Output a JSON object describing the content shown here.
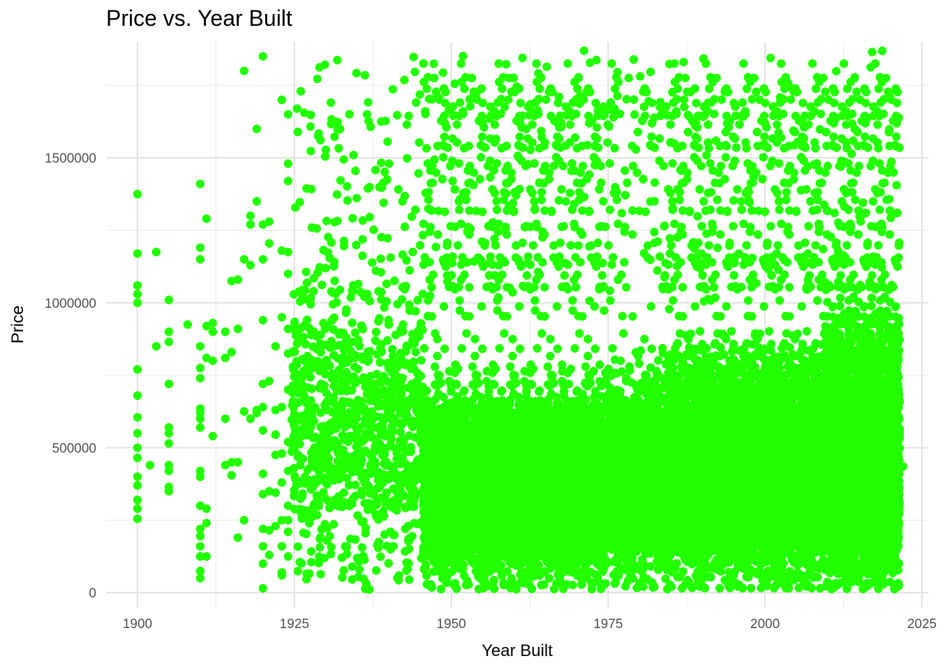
{
  "chart_data": {
    "type": "scatter",
    "title": "Price vs. Year Built",
    "xlabel": "Year Built",
    "ylabel": "Price",
    "xlim": [
      1895,
      2026
    ],
    "ylim": [
      -50000,
      1900000
    ],
    "x_ticks": [
      1900,
      1925,
      1950,
      1975,
      2000,
      2025
    ],
    "y_ticks": [
      0,
      500000,
      1000000,
      1500000
    ],
    "x_tick_labels": [
      "1900",
      "1925",
      "1950",
      "1975",
      "2000",
      "2025"
    ],
    "y_tick_labels": [
      "0",
      "500000",
      "1000000",
      "1500000"
    ],
    "grid": true,
    "point_color": "#22ff00",
    "series": [
      {
        "points": [
          [
            1900,
            1375000
          ],
          [
            1900,
            1170000
          ],
          [
            1900,
            1060000
          ],
          [
            1900,
            1030000
          ],
          [
            1900,
            1000000
          ],
          [
            1900,
            770000
          ],
          [
            1900,
            680000
          ],
          [
            1900,
            605000
          ],
          [
            1900,
            550000
          ],
          [
            1900,
            500000
          ],
          [
            1900,
            465000
          ],
          [
            1900,
            400000
          ],
          [
            1900,
            370000
          ],
          [
            1900,
            320000
          ],
          [
            1900,
            290000
          ],
          [
            1900,
            255000
          ],
          [
            1903,
            1175000
          ],
          [
            1902,
            440000
          ],
          [
            1903,
            850000
          ],
          [
            1905,
            1010000
          ],
          [
            1905,
            900000
          ],
          [
            1905,
            865000
          ],
          [
            1905,
            720000
          ],
          [
            1905,
            570000
          ],
          [
            1905,
            550000
          ],
          [
            1905,
            515000
          ],
          [
            1905,
            440000
          ],
          [
            1905,
            420000
          ],
          [
            1905,
            365000
          ],
          [
            1905,
            350000
          ],
          [
            1908,
            925000
          ],
          [
            1910,
            1410000
          ],
          [
            1910,
            1190000
          ],
          [
            1910,
            1150000
          ],
          [
            1910,
            850000
          ],
          [
            1910,
            775000
          ],
          [
            1910,
            740000
          ],
          [
            1910,
            635000
          ],
          [
            1910,
            620000
          ],
          [
            1910,
            600000
          ],
          [
            1910,
            570000
          ],
          [
            1910,
            420000
          ],
          [
            1910,
            400000
          ],
          [
            1910,
            300000
          ],
          [
            1910,
            220000
          ],
          [
            1910,
            195000
          ],
          [
            1910,
            160000
          ],
          [
            1910,
            125000
          ],
          [
            1910,
            75000
          ],
          [
            1910,
            50000
          ],
          [
            1911,
            1290000
          ],
          [
            1911,
            920000
          ],
          [
            1911,
            810000
          ],
          [
            1911,
            290000
          ],
          [
            1911,
            240000
          ],
          [
            1911,
            125000
          ],
          [
            1912,
            930000
          ],
          [
            1912,
            900000
          ],
          [
            1912,
            540000
          ],
          [
            1912,
            800000
          ],
          [
            1914,
            900000
          ],
          [
            1914,
            810000
          ],
          [
            1914,
            600000
          ],
          [
            1914,
            440000
          ],
          [
            1915,
            1075000
          ],
          [
            1915,
            830000
          ],
          [
            1915,
            450000
          ],
          [
            1915,
            405000
          ],
          [
            1916,
            1080000
          ],
          [
            1916,
            910000
          ],
          [
            1916,
            450000
          ],
          [
            1916,
            190000
          ],
          [
            1917,
            1800000
          ],
          [
            1917,
            1150000
          ],
          [
            1917,
            625000
          ],
          [
            1917,
            250000
          ],
          [
            1918,
            1300000
          ],
          [
            1918,
            1130000
          ],
          [
            1918,
            1270000
          ],
          [
            1918,
            600000
          ],
          [
            1919,
            1600000
          ],
          [
            1919,
            1350000
          ],
          [
            1919,
            620000
          ],
          [
            1919,
            630000
          ],
          [
            1920,
            1850000
          ],
          [
            1920,
            1270000
          ],
          [
            1920,
            1150000
          ],
          [
            1920,
            940000
          ],
          [
            1920,
            720000
          ],
          [
            1920,
            640000
          ],
          [
            1920,
            560000
          ],
          [
            1920,
            410000
          ],
          [
            1920,
            340000
          ],
          [
            1920,
            220000
          ],
          [
            1920,
            160000
          ],
          [
            1920,
            100000
          ],
          [
            1920,
            15000
          ],
          [
            1921,
            1280000
          ],
          [
            1921,
            1205000
          ],
          [
            1921,
            730000
          ],
          [
            1921,
            350000
          ],
          [
            1921,
            215000
          ],
          [
            1921,
            130000
          ],
          [
            1922,
            850000
          ],
          [
            1922,
            630000
          ],
          [
            1922,
            545000
          ],
          [
            1922,
            475000
          ],
          [
            1922,
            345000
          ],
          [
            1922,
            230000
          ],
          [
            1923,
            1700000
          ],
          [
            1923,
            1180000
          ],
          [
            1923,
            950000
          ],
          [
            1923,
            640000
          ],
          [
            1923,
            480000
          ],
          [
            1923,
            380000
          ],
          [
            1923,
            250000
          ],
          [
            1923,
            160000
          ],
          [
            1923,
            70000
          ],
          [
            1923,
            60000
          ],
          [
            1924,
            1650000
          ],
          [
            1924,
            1480000
          ],
          [
            1924,
            1420000
          ],
          [
            1924,
            1175000
          ],
          [
            1924,
            1100000
          ],
          [
            1924,
            910000
          ],
          [
            1924,
            825000
          ],
          [
            1924,
            700000
          ],
          [
            1924,
            520000
          ],
          [
            1924,
            420000
          ],
          [
            1924,
            300000
          ],
          [
            1924,
            250000
          ],
          [
            1924,
            210000
          ],
          [
            1924,
            125000
          ]
        ]
      }
    ]
  }
}
